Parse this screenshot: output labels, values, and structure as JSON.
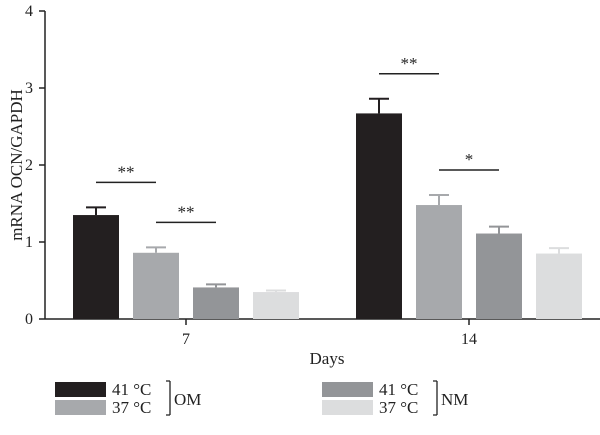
{
  "chart_data": {
    "type": "bar",
    "title": "",
    "xlabel": "Days",
    "ylabel": "mRNA OCN/GAPDH",
    "ylim": [
      0,
      4
    ],
    "yticks": [
      "0",
      "1",
      "2",
      "3",
      "4"
    ],
    "categories": [
      "7",
      "14"
    ],
    "series": [
      {
        "name": "41 °C",
        "group": "OM",
        "color": "#231f20",
        "values": [
          1.35,
          2.67
        ],
        "errors": [
          0.1,
          0.19
        ]
      },
      {
        "name": "37 °C",
        "group": "OM",
        "color": "#a7a9ac",
        "values": [
          0.86,
          1.48
        ],
        "errors": [
          0.07,
          0.13
        ]
      },
      {
        "name": "41 °C",
        "group": "NM",
        "color": "#939598",
        "values": [
          0.41,
          1.11
        ],
        "errors": [
          0.04,
          0.09
        ]
      },
      {
        "name": "37 °C",
        "group": "NM",
        "color": "#dcddde",
        "values": [
          0.35,
          0.85
        ],
        "errors": [
          0.02,
          0.07
        ]
      }
    ],
    "significance": [
      {
        "category": "7",
        "from_series": 0,
        "to_series": 1,
        "label": "**"
      },
      {
        "category": "7",
        "from_series": 1,
        "to_series": 2,
        "label": "**"
      },
      {
        "category": "14",
        "from_series": 0,
        "to_series": 1,
        "label": "**"
      },
      {
        "category": "14",
        "from_series": 1,
        "to_series": 2,
        "label": "*"
      }
    ],
    "legend": {
      "position": "bottom",
      "groups": [
        {
          "bracket_label": "OM",
          "entries": [
            "41 °C",
            "37 °C"
          ]
        },
        {
          "bracket_label": "NM",
          "entries": [
            "41 °C",
            "37 °C"
          ]
        }
      ]
    }
  }
}
